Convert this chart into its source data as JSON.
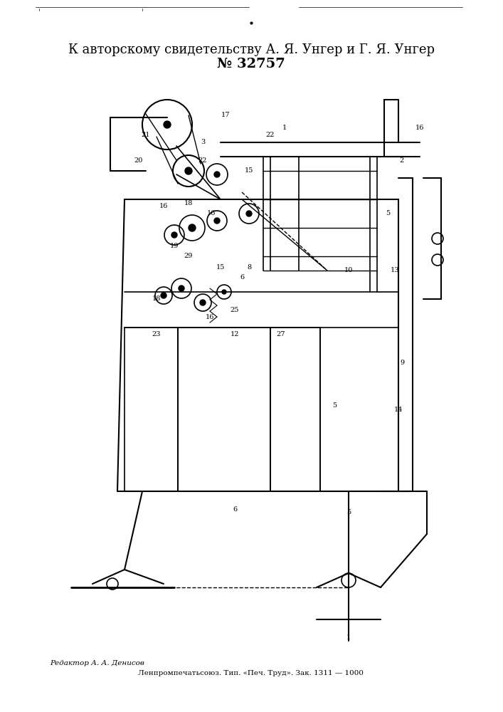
{
  "title_line1": "К авторскому свидетельству А. Я. Унгер и Г. Я. Унгер",
  "title_line2": "№ 32757",
  "footer_left": "Редактор А. А. Денисов",
  "footer_right": "Ленпромпечатьсоюз. Тип. «Печ. Труд». Зак. 1311 — 1000",
  "bg_color": "#ffffff",
  "line_color": "#000000"
}
